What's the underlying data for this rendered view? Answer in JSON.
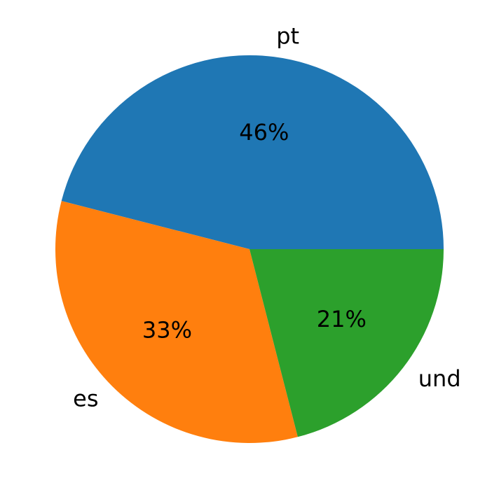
{
  "chart_data": {
    "type": "pie",
    "categories": [
      "pt",
      "es",
      "und"
    ],
    "values": [
      46,
      33,
      21
    ],
    "value_labels": [
      "46%",
      "33%",
      "21%"
    ],
    "colors": [
      "#1f77b4",
      "#ff7f0e",
      "#2ca02c"
    ]
  }
}
